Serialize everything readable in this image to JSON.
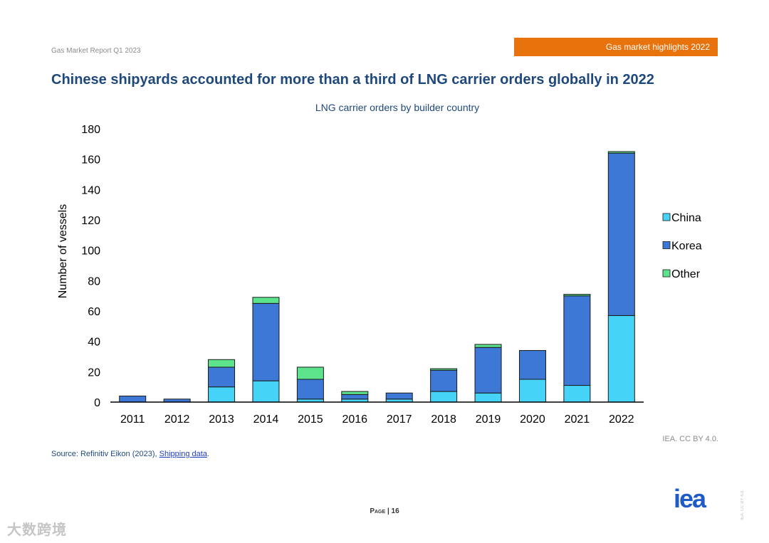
{
  "header": {
    "report_name": "Gas Market Report Q1 2023",
    "section_tab": "Gas market highlights 2022",
    "section_tab_color": "#e8720c"
  },
  "slide_title": "Chinese shipyards accounted for more than a third of LNG carrier orders globally in 2022",
  "chart_data": {
    "type": "bar",
    "stacked": true,
    "title": "LNG carrier orders by builder country",
    "xlabel": "",
    "ylabel": "Number of vessels",
    "ylim": [
      0,
      180
    ],
    "yticks": [
      "0",
      "20",
      "40",
      "60",
      "80",
      "100",
      "120",
      "140",
      "160",
      "180"
    ],
    "categories": [
      "2011",
      "2012",
      "2013",
      "2014",
      "2015",
      "2016",
      "2017",
      "2018",
      "2019",
      "2020",
      "2021",
      "2022"
    ],
    "series": [
      {
        "name": "China",
        "color": "#45d3f7",
        "values": [
          0,
          0,
          10,
          14,
          2,
          2,
          2,
          7,
          6,
          15,
          11,
          57
        ]
      },
      {
        "name": "Korea",
        "color": "#3d78d6",
        "values": [
          4,
          2,
          13,
          51,
          13,
          3,
          4,
          14,
          30,
          19,
          59,
          107
        ]
      },
      {
        "name": "Other",
        "color": "#5ce38c",
        "values": [
          0,
          0,
          5,
          4,
          8,
          2,
          0,
          1,
          2,
          0,
          1,
          1
        ]
      }
    ],
    "legend_position": "right"
  },
  "footer": {
    "source_prefix": "Source: Refinitiv Eikon (2023), ",
    "source_link": "Shipping data",
    "source_suffix": ".",
    "credit": "IEA. CC BY 4.0.",
    "page_label": "Page",
    "page_separator": " | ",
    "page_number": "16",
    "logo": "iea",
    "side_note": "IEA. CC BY 4.0.",
    "watermark": "大数跨境"
  }
}
